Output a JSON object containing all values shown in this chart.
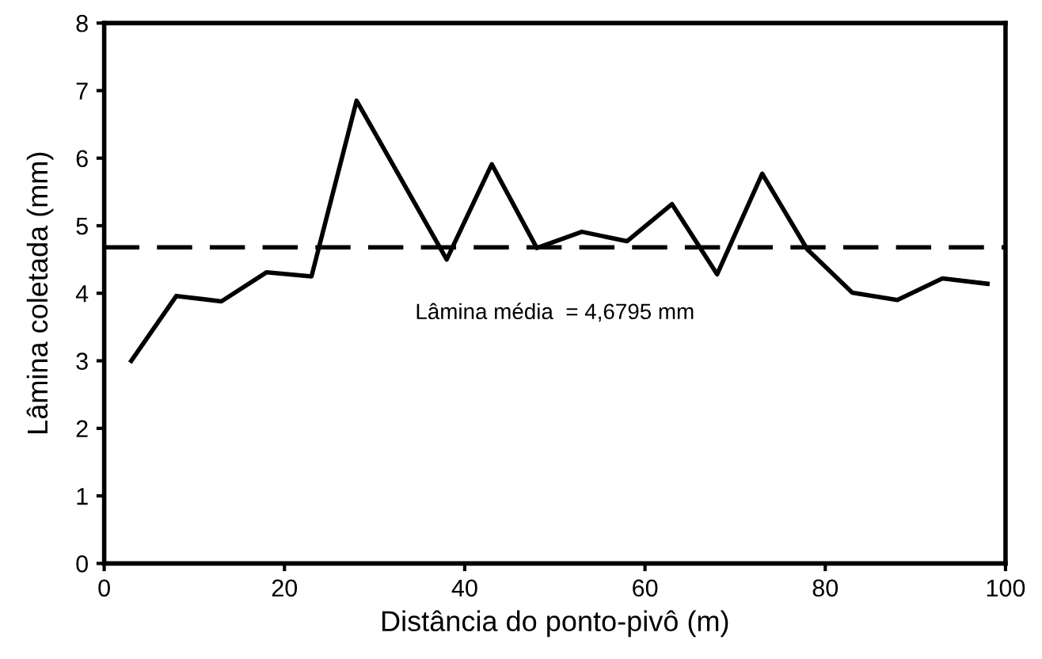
{
  "chart_data": {
    "type": "line",
    "xlabel": "Distância do ponto-pivô (m)",
    "ylabel": "Lâmina coletada (mm)",
    "x": [
      3,
      8,
      13,
      18,
      23,
      28,
      38,
      43,
      48,
      53,
      58,
      63,
      68,
      73,
      78,
      83,
      88,
      93,
      98
    ],
    "series": [
      {
        "color": "#000000",
        "values": [
          3.0,
          3.96,
          3.88,
          4.31,
          4.25,
          6.85,
          4.5,
          5.91,
          4.67,
          4.91,
          4.77,
          5.32,
          4.28,
          5.77,
          4.65,
          4.01,
          3.9,
          4.22,
          4.14
        ]
      }
    ],
    "xlim": [
      0,
      100
    ],
    "xticks": [
      0,
      20,
      40,
      60,
      80,
      100
    ],
    "ylim": [
      0,
      8
    ],
    "yticks": [
      0,
      1,
      2,
      3,
      4,
      5,
      6,
      7,
      8
    ],
    "ref_lines": [
      {
        "axis": "y",
        "value": 4.6795,
        "label": "Lâmina média  = 4,6795 mm",
        "color": "#000000",
        "line_style": "dashed"
      }
    ],
    "grid": false,
    "marker": "none",
    "line_style": "solid"
  }
}
